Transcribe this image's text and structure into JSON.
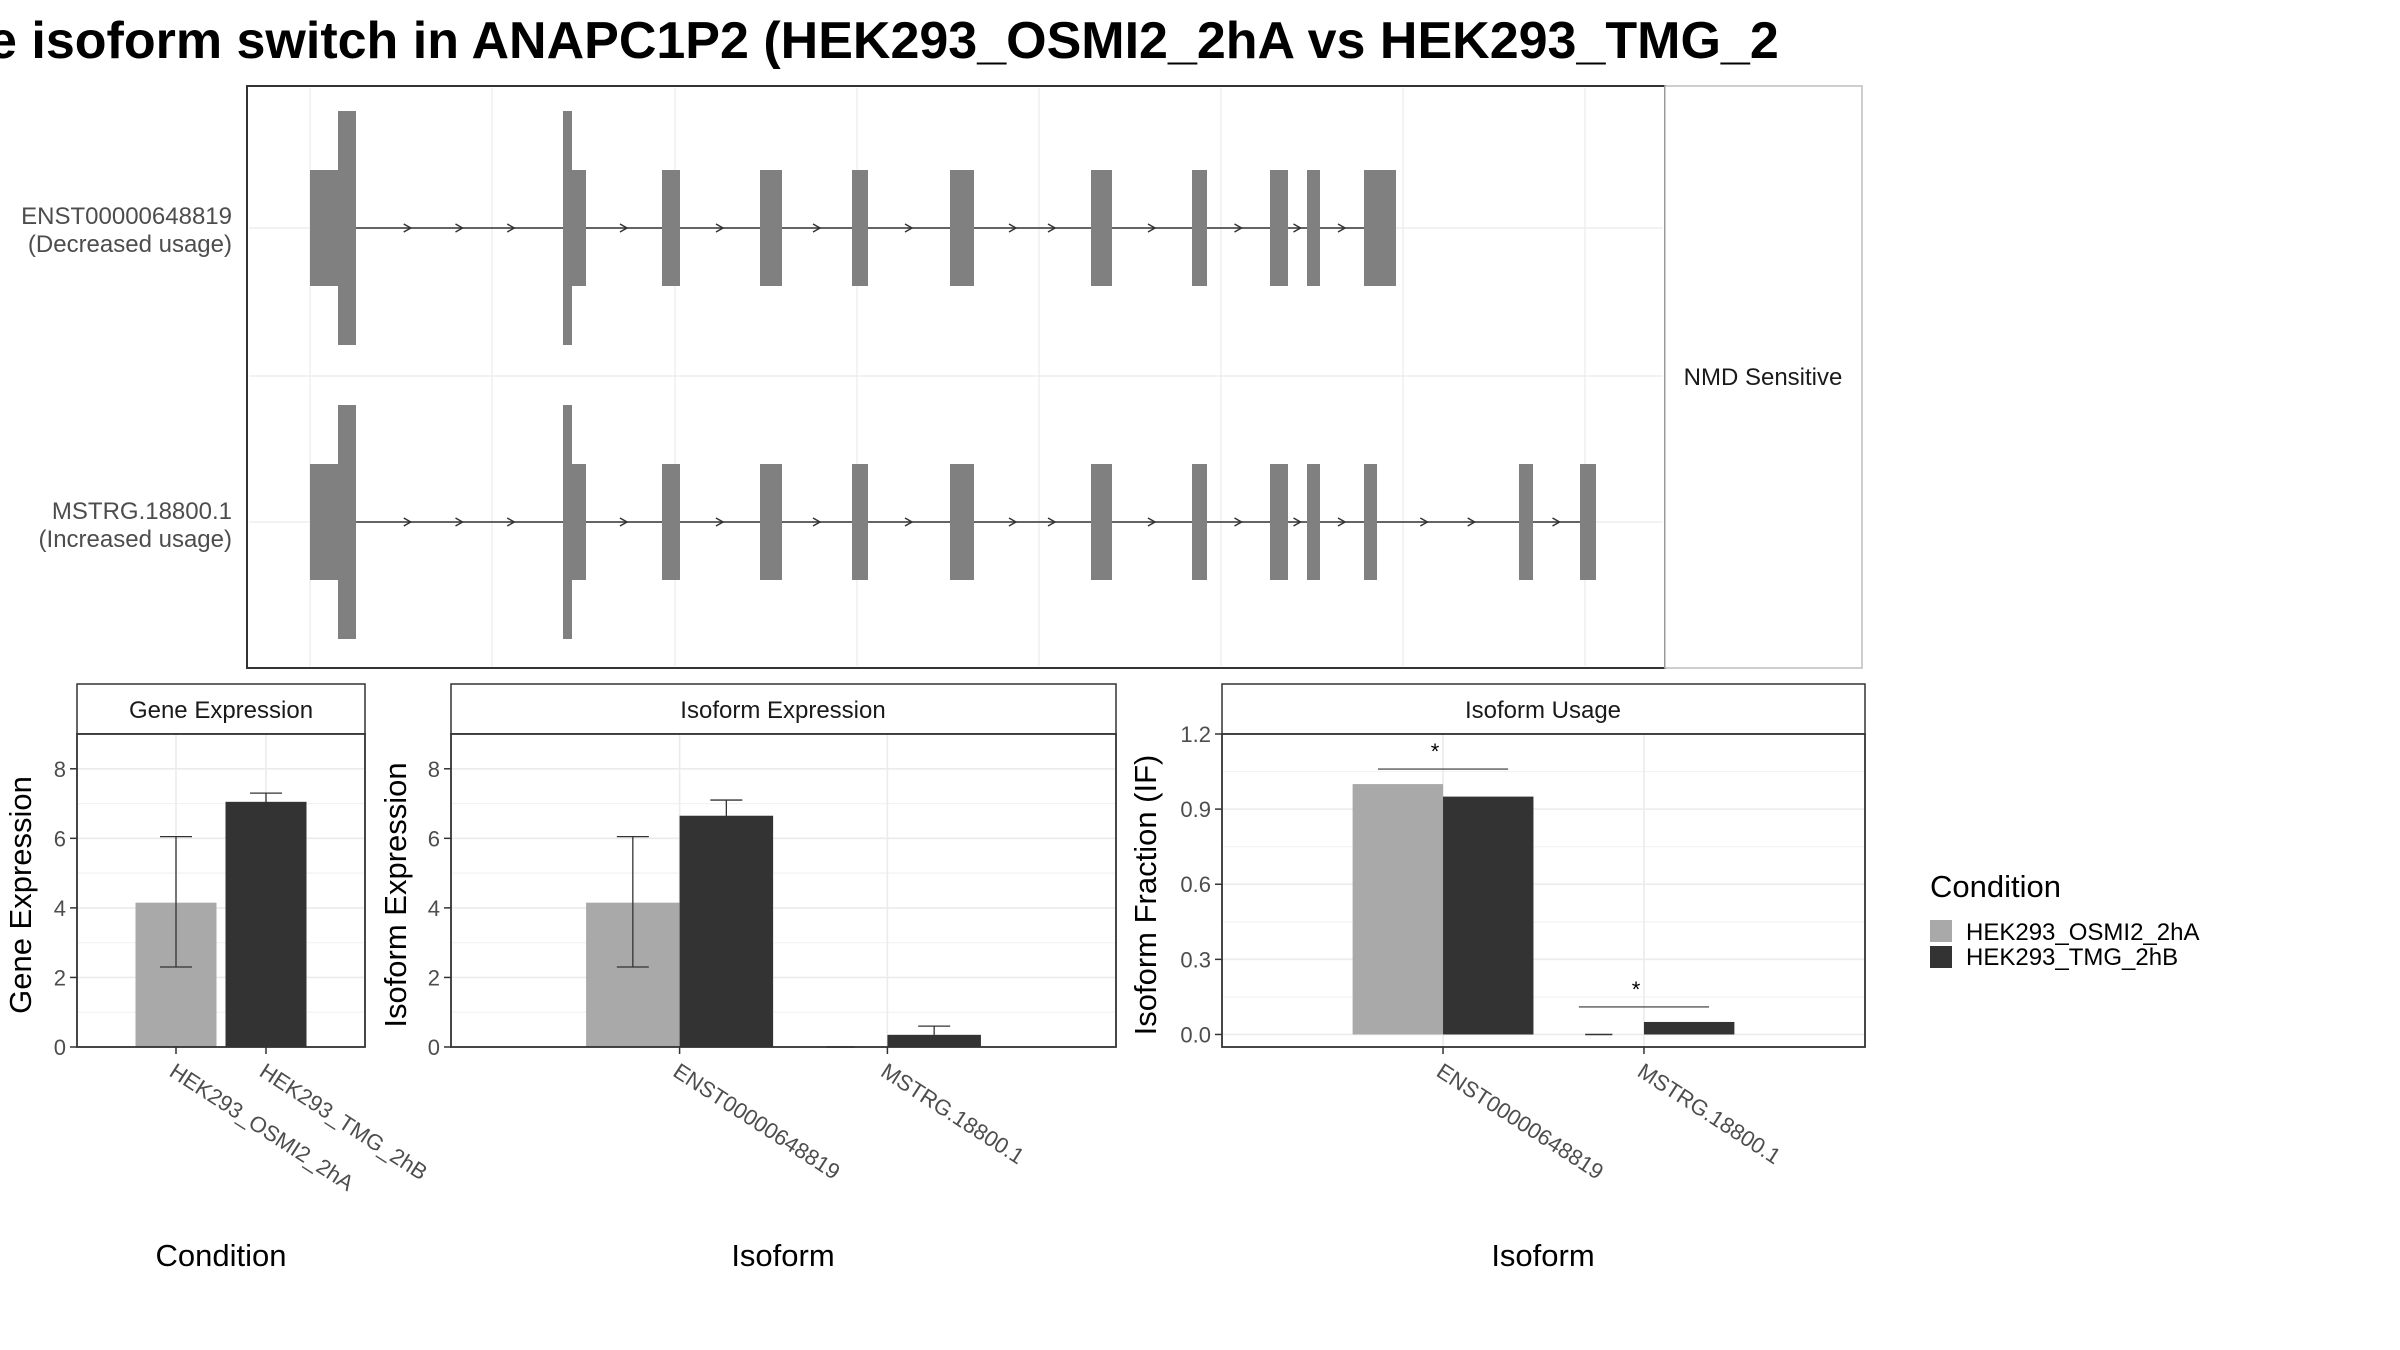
{
  "chart_data": [
    {
      "type": "gene-structure",
      "title": "e isoform switch in ANAPC1P2 (HEK293_OSMI2_2hA vs HEK293_TMG_2",
      "facet_label": "NMD Sensitive",
      "transcripts": [
        {
          "id": "ENST00000648819",
          "usage": "(Decreased usage)"
        },
        {
          "id": "MSTRG.18800.1",
          "usage": "(Increased usage)"
        }
      ]
    },
    {
      "type": "bar",
      "panel": "Gene Expression",
      "xlabel": "Condition",
      "ylabel": "Gene Expression",
      "ylim": [
        0,
        9
      ],
      "yticks": [
        "0",
        "2",
        "4",
        "6",
        "8"
      ],
      "categories": [
        "HEK293_OSMI2_2hA",
        "HEK293_TMG_2hB"
      ],
      "values": [
        4.15,
        7.05
      ],
      "error_low": [
        2.3,
        6.8
      ],
      "error_high": [
        6.05,
        7.3
      ]
    },
    {
      "type": "bar",
      "panel": "Isoform Expression",
      "xlabel": "Isoform",
      "ylabel": "Isoform Expression",
      "ylim": [
        0,
        9
      ],
      "yticks": [
        "0",
        "2",
        "4",
        "6",
        "8"
      ],
      "categories": [
        "ENST00000648819",
        "MSTRG.18800.1"
      ],
      "series": [
        {
          "name": "HEK293_OSMI2_2hA",
          "values": [
            4.15,
            0.0
          ],
          "error_low": [
            2.3,
            0.0
          ],
          "error_high": [
            6.05,
            0.0
          ]
        },
        {
          "name": "HEK293_TMG_2hB",
          "values": [
            6.65,
            0.35
          ],
          "error_low": [
            6.25,
            0.1
          ],
          "error_high": [
            7.1,
            0.6
          ]
        }
      ]
    },
    {
      "type": "bar",
      "panel": "Isoform Usage",
      "xlabel": "Isoform",
      "ylabel": "Isoform Fraction (IF)",
      "ylim": [
        -0.05,
        1.2
      ],
      "yticks": [
        "0.0",
        "0.3",
        "0.6",
        "0.9",
        "1.2"
      ],
      "categories": [
        "ENST00000648819",
        "MSTRG.18800.1"
      ],
      "series": [
        {
          "name": "HEK293_OSMI2_2hA",
          "values": [
            1.0,
            0.0
          ]
        },
        {
          "name": "HEK293_TMG_2hB",
          "values": [
            0.95,
            0.05
          ]
        }
      ],
      "significance": [
        {
          "category": "ENST00000648819",
          "label": "*"
        },
        {
          "category": "MSTRG.18800.1",
          "label": "*"
        }
      ]
    }
  ],
  "legend": {
    "title": "Condition",
    "entries": [
      {
        "label": "HEK293_OSMI2_2hA",
        "color": "#a9a9a9"
      },
      {
        "label": "HEK293_TMG_2hB",
        "color": "#333333"
      }
    ]
  },
  "colors": {
    "exon": "#808080",
    "intron": "#333333",
    "osmi": "#a9a9a9",
    "tmg": "#333333",
    "grid": "#ebebeb",
    "frame": "#333333"
  }
}
